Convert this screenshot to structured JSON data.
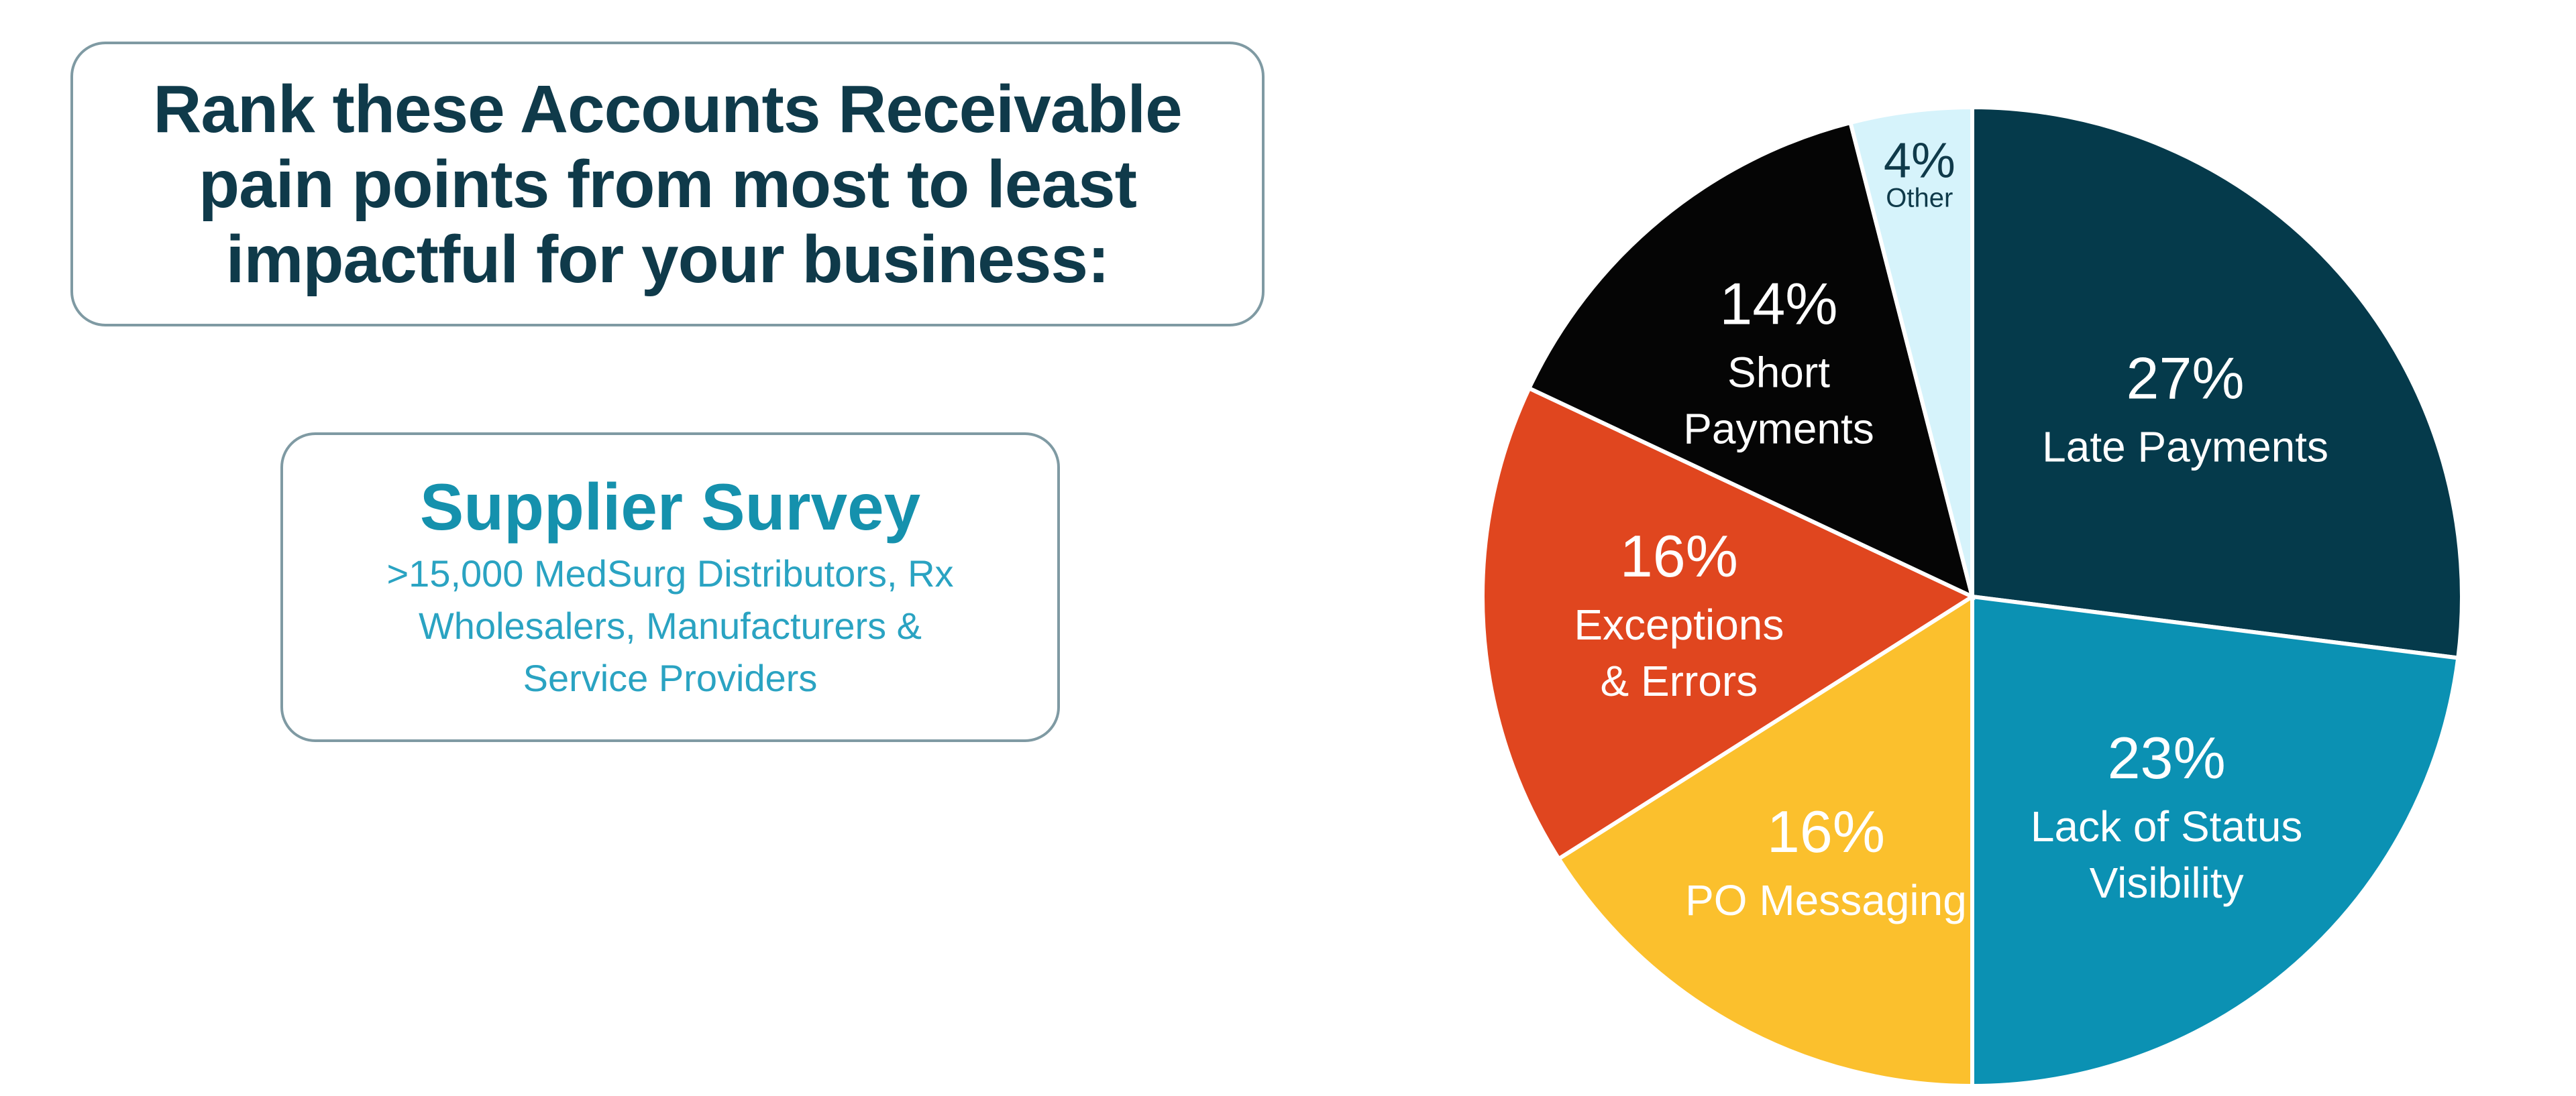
{
  "question": {
    "lines": [
      "Rank these Accounts Receivable",
      "pain points from most to least",
      "impactful for your business:"
    ]
  },
  "survey": {
    "title": "Supplier Survey",
    "lines": [
      ">15,000 MedSurg Distributors, Rx",
      "Wholesalers, Manufacturers  &",
      "Service Providers"
    ]
  },
  "chart_data": {
    "type": "pie",
    "slices": [
      {
        "label": "Late Payments",
        "value": 27,
        "display": "27%",
        "name_lines": [
          "Late Payments"
        ],
        "color": "#053a4b",
        "text_color": "#ffffff"
      },
      {
        "label": "Lack of Status Visibility",
        "value": 23,
        "display": "23%",
        "name_lines": [
          "Lack of Status",
          "Visibility"
        ],
        "color": "#0b91b3",
        "text_color": "#ffffff"
      },
      {
        "label": "PO Messaging",
        "value": 16,
        "display": "16%",
        "name_lines": [
          "PO Messaging"
        ],
        "color": "#fbc02d",
        "text_color": "#ffffff"
      },
      {
        "label": "Exceptions & Errors",
        "value": 16,
        "display": "16%",
        "name_lines": [
          "Exceptions",
          "& Errors"
        ],
        "color": "#e0461f",
        "text_color": "#ffffff"
      },
      {
        "label": "Short Payments",
        "value": 14,
        "display": "14%",
        "name_lines": [
          "Short",
          "Payments"
        ],
        "color": "#050505",
        "text_color": "#ffffff"
      },
      {
        "label": "Other",
        "value": 4,
        "display": "4%",
        "name_lines": [
          "Other"
        ],
        "color": "#d6f3fb",
        "text_color": "#0f3a4a"
      }
    ],
    "start_angle_deg": 0,
    "direction": "clockwise"
  }
}
